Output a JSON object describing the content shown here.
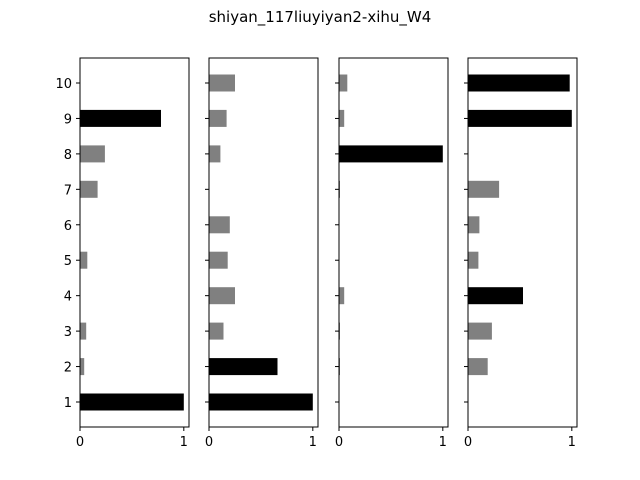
{
  "figure": {
    "title": "shiyan_117liuyiyan2-xihu_W4"
  },
  "chart_data": [
    {
      "type": "bar",
      "orientation": "horizontal",
      "categories": [
        "1",
        "2",
        "3",
        "4",
        "5",
        "6",
        "7",
        "8",
        "9",
        "10"
      ],
      "values": [
        1.0,
        0.04,
        0.06,
        0.0,
        0.07,
        0.0,
        0.17,
        0.24,
        0.78,
        0.0
      ],
      "colors": [
        "#000000",
        "#808080",
        "#808080",
        "#808080",
        "#808080",
        "#808080",
        "#808080",
        "#808080",
        "#000000",
        "#808080"
      ],
      "xticks": [
        "0",
        "1"
      ],
      "xlim": [
        0,
        1.05
      ]
    },
    {
      "type": "bar",
      "orientation": "horizontal",
      "categories": [
        "1",
        "2",
        "3",
        "4",
        "5",
        "6",
        "7",
        "8",
        "9",
        "10"
      ],
      "values": [
        1.0,
        0.66,
        0.14,
        0.25,
        0.18,
        0.2,
        0.0,
        0.11,
        0.17,
        0.25
      ],
      "colors": [
        "#000000",
        "#000000",
        "#808080",
        "#808080",
        "#808080",
        "#808080",
        "#808080",
        "#808080",
        "#808080",
        "#808080"
      ],
      "xticks": [
        "0",
        "1"
      ],
      "xlim": [
        0,
        1.05
      ]
    },
    {
      "type": "bar",
      "orientation": "horizontal",
      "categories": [
        "1",
        "2",
        "3",
        "4",
        "5",
        "6",
        "7",
        "8",
        "9",
        "10"
      ],
      "values": [
        0.0,
        0.01,
        0.01,
        0.05,
        0.0,
        0.0,
        0.01,
        1.0,
        0.05,
        0.08
      ],
      "colors": [
        "#808080",
        "#808080",
        "#808080",
        "#808080",
        "#808080",
        "#808080",
        "#808080",
        "#000000",
        "#808080",
        "#808080"
      ],
      "xticks": [
        "0",
        "1"
      ],
      "xlim": [
        0,
        1.05
      ]
    },
    {
      "type": "bar",
      "orientation": "horizontal",
      "categories": [
        "1",
        "2",
        "3",
        "4",
        "5",
        "6",
        "7",
        "8",
        "9",
        "10"
      ],
      "values": [
        0.0,
        0.19,
        0.23,
        0.53,
        0.1,
        0.11,
        0.3,
        0.0,
        1.0,
        0.98
      ],
      "colors": [
        "#808080",
        "#808080",
        "#808080",
        "#000000",
        "#808080",
        "#808080",
        "#808080",
        "#808080",
        "#000000",
        "#000000"
      ],
      "xticks": [
        "0",
        "1"
      ],
      "xlim": [
        0,
        1.05
      ]
    }
  ]
}
